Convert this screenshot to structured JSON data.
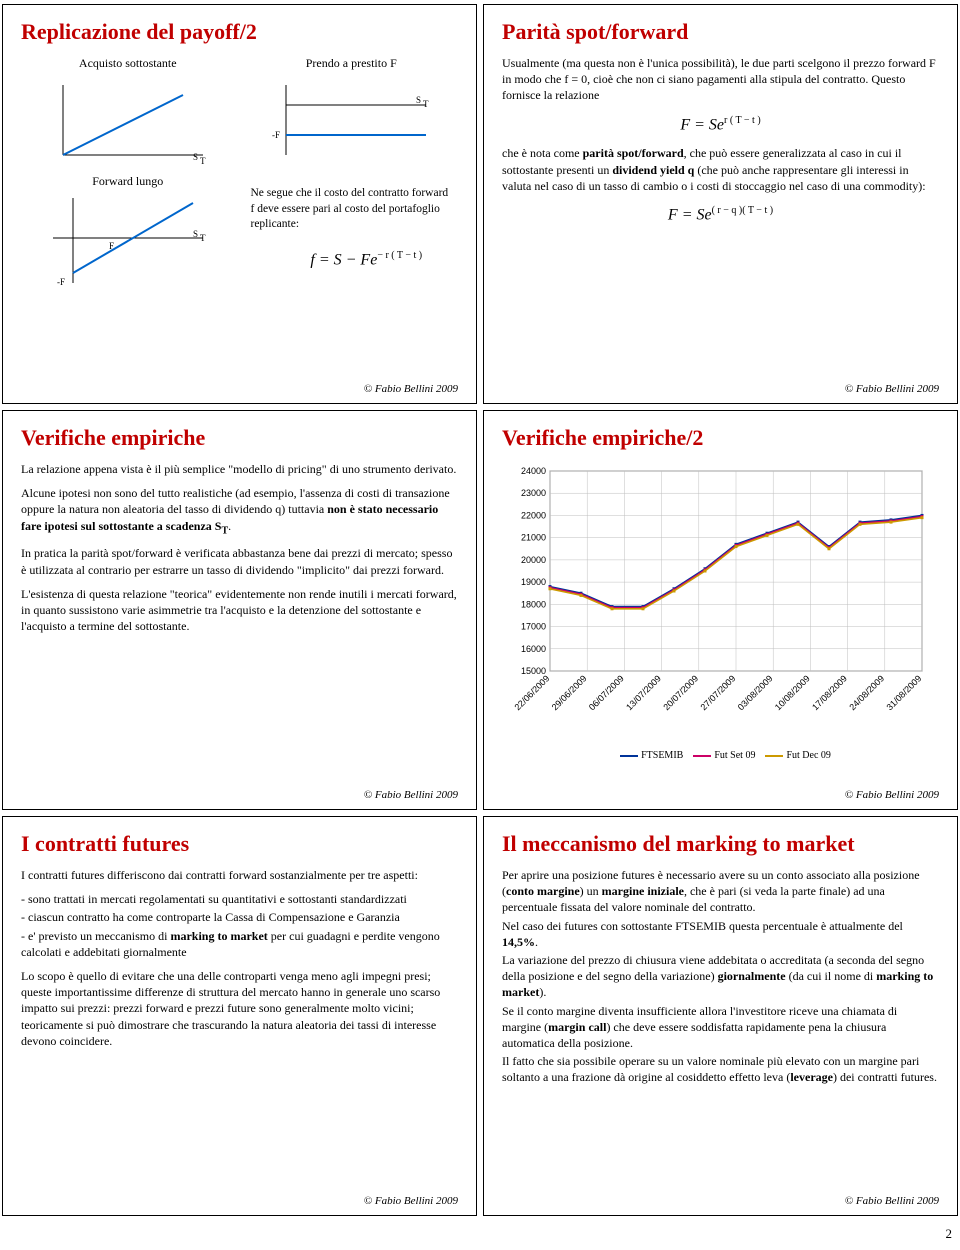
{
  "slide1": {
    "title": "Replicazione del payoff/2",
    "sub_left": "Acquisto sottostante",
    "sub_right": "Prendo a prestito F",
    "lbl_forward_lungo": "Forward lungo",
    "lbl_F": "F",
    "lbl_ST": "S",
    "lbl_ST_sub": "T",
    "lbl_minusF": "-F",
    "note": "Ne segue che il costo del contratto forward f deve essere pari al costo del portafoglio replicante:",
    "formula": "f = S − Fe",
    "formula_exp": "− r ( T − t )",
    "footer": "© Fabio Bellini 2009",
    "line_color": "#0066cc"
  },
  "slide2": {
    "title": "Parità spot/forward",
    "p1a": "Usualmente (ma questa non è l'unica possibilità), le due parti scelgono il prezzo forward F in modo che f = 0, cioè che non ci siano pagamenti alla stipula del contratto. Questo fornisce la relazione",
    "formula1": "F = Se",
    "formula1_exp": "r ( T − t )",
    "p2a": "che è nota come ",
    "p2b": "parità spot/forward",
    "p2c": ", che può essere generalizzata al caso in cui il sottostante presenti un ",
    "p2d": "dividend yield q",
    "p2e": " (che può anche rappresentare gli interessi in valuta nel caso di un tasso di cambio o i costi di stoccaggio nel caso di una commodity):",
    "formula2": "F = Se",
    "formula2_exp": "( r − q )( T − t )",
    "footer": "© Fabio Bellini 2009"
  },
  "slide3": {
    "title": "Verifiche empiriche",
    "p1": "La relazione appena vista è il più semplice \"modello di pricing\" di uno strumento derivato.",
    "p2a": "Alcune ipotesi non sono del tutto realistiche (ad esempio, l'assenza di costi di transazione oppure la natura non aleatoria del tasso di dividendo q) tuttavia ",
    "p2b": "non è stato necessario fare ipotesi sul sottostante a scadenza S",
    "p2b_sub": "T",
    "p2c": ".",
    "p3": "In pratica la parità spot/forward è verificata abbastanza bene dai prezzi di mercato; spesso è utilizzata al contrario per estrarre un tasso di dividendo \"implicito\" dai prezzi forward.",
    "p4": "L'esistenza di questa relazione \"teorica\" evidentemente non rende inutili i mercati forward, in quanto sussistono varie asimmetrie tra l'acquisto e la detenzione del sottostante e l'acquisto a termine del sottostante.",
    "footer": "© Fabio Bellini 2009"
  },
  "slide4": {
    "title": "Verifiche empiriche/2",
    "chart": {
      "ymin": 15000,
      "ymax": 24000,
      "ystep": 1000,
      "yticks": [
        15000,
        16000,
        17000,
        18000,
        19000,
        20000,
        21000,
        22000,
        23000,
        24000
      ],
      "xlabels": [
        "22/06/2009",
        "29/06/2009",
        "06/07/2009",
        "13/07/2009",
        "20/07/2009",
        "27/07/2009",
        "03/08/2009",
        "10/08/2009",
        "17/08/2009",
        "24/08/2009",
        "31/08/2009"
      ],
      "series": [
        {
          "name": "FTSEMIB",
          "color": "#003399",
          "values": [
            18800,
            18500,
            17900,
            17900,
            18700,
            19600,
            20700,
            21200,
            21700,
            20600,
            21700,
            21800,
            22000
          ]
        },
        {
          "name": "Fut Set 09",
          "color": "#cc0066",
          "values": [
            18750,
            18450,
            17850,
            17850,
            18650,
            19550,
            20650,
            21150,
            21650,
            20550,
            21650,
            21750,
            21950
          ]
        },
        {
          "name": "Fut Dec 09",
          "color": "#cc9900",
          "values": [
            18700,
            18400,
            17800,
            17800,
            18600,
            19500,
            20600,
            21100,
            21600,
            20500,
            21600,
            21700,
            21900
          ]
        }
      ],
      "legend_labels": [
        "FTSEMIB",
        "Fut Set 09",
        "Fut Dec 09"
      ],
      "grid_color": "#bfbfbf",
      "bg_color": "#ffffff"
    },
    "footer": "© Fabio Bellini 2009"
  },
  "slide5": {
    "title": "I contratti futures",
    "p1": "I contratti futures differiscono dai contratti forward sostanzialmente per tre aspetti:",
    "li1": "- sono trattati in mercati regolamentati su quantitativi e sottostanti standardizzati",
    "li2": "- ciascun contratto ha come controparte la Cassa di Compensazione e Garanzia",
    "li3a": "- e' previsto un meccanismo di ",
    "li3b": "marking to market",
    "li3c": " per cui guadagni e perdite vengono calcolati e addebitati giornalmente",
    "p2": "Lo scopo è quello di evitare che una delle controparti venga meno agli impegni presi; queste importantissime differenze di struttura del mercato hanno in generale uno scarso impatto sui prezzi: prezzi forward e prezzi future sono generalmente molto vicini; teoricamente si può dimostrare che trascurando la natura aleatoria dei tassi di interesse devono coincidere.",
    "footer": "© Fabio Bellini 2009"
  },
  "slide6": {
    "title": "Il meccanismo del marking to market",
    "p1a": "Per aprire una posizione futures è necessario avere su un conto associato alla posizione (",
    "p1b": "conto margine",
    "p1c": ") un ",
    "p1d": "margine iniziale",
    "p1e": ", che è pari (si veda la parte finale) ad una percentuale fissata del valore nominale del contratto.",
    "p2a": "Nel caso dei futures con sottostante FTSEMIB questa percentuale è attualmente del ",
    "p2b": "14,5%",
    "p2c": ".",
    "p3a": "La variazione del prezzo di chiusura viene addebitata o accreditata (a seconda del segno della posizione e del segno della variazione) ",
    "p3b": "giornalmente",
    "p3c": " (da cui il nome di ",
    "p3d": "marking to market",
    "p3e": ").",
    "p4a": "Se il conto margine diventa insufficiente allora l'investitore riceve una chiamata di margine (",
    "p4b": "margin call",
    "p4c": ") che deve essere soddisfatta rapidamente pena la chiusura automatica della posizione.",
    "p5a": "Il fatto che sia possibile operare su un valore nominale più elevato con un margine pari soltanto a una frazione dà origine al cosiddetto effetto leva (",
    "p5b": "leverage",
    "p5c": ") dei contratti futures.",
    "footer": "© Fabio Bellini 2009"
  },
  "page_number": "2"
}
